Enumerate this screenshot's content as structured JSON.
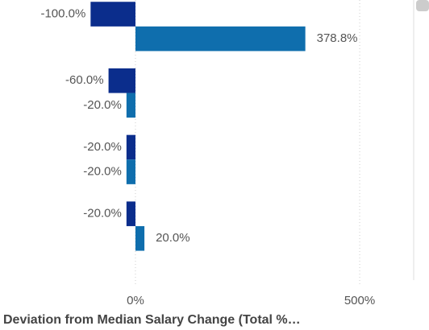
{
  "chart_data": {
    "type": "bar",
    "orientation": "horizontal",
    "x_label": "Deviation from Median Salary Change (Total %…",
    "categories": [
      null,
      null,
      null,
      null
    ],
    "series": [
      {
        "color": "#0b2d8c",
        "values": [
          -100,
          -60,
          -20,
          -20
        ],
        "value_labels": [
          "-100.0%",
          "-60.0%",
          "-20.0%",
          "-20.0%"
        ]
      },
      {
        "color": "#0f6ead",
        "values": [
          378.8,
          -20,
          -20,
          20
        ],
        "value_labels": [
          "378.8%",
          "-20.0%",
          "-20.0%",
          "20.0%"
        ]
      }
    ],
    "xlim": [
      -302,
      615
    ],
    "xticks": [
      {
        "value": 0,
        "label": "0%"
      },
      {
        "value": 500,
        "label": "500%"
      }
    ],
    "grid": true
  }
}
